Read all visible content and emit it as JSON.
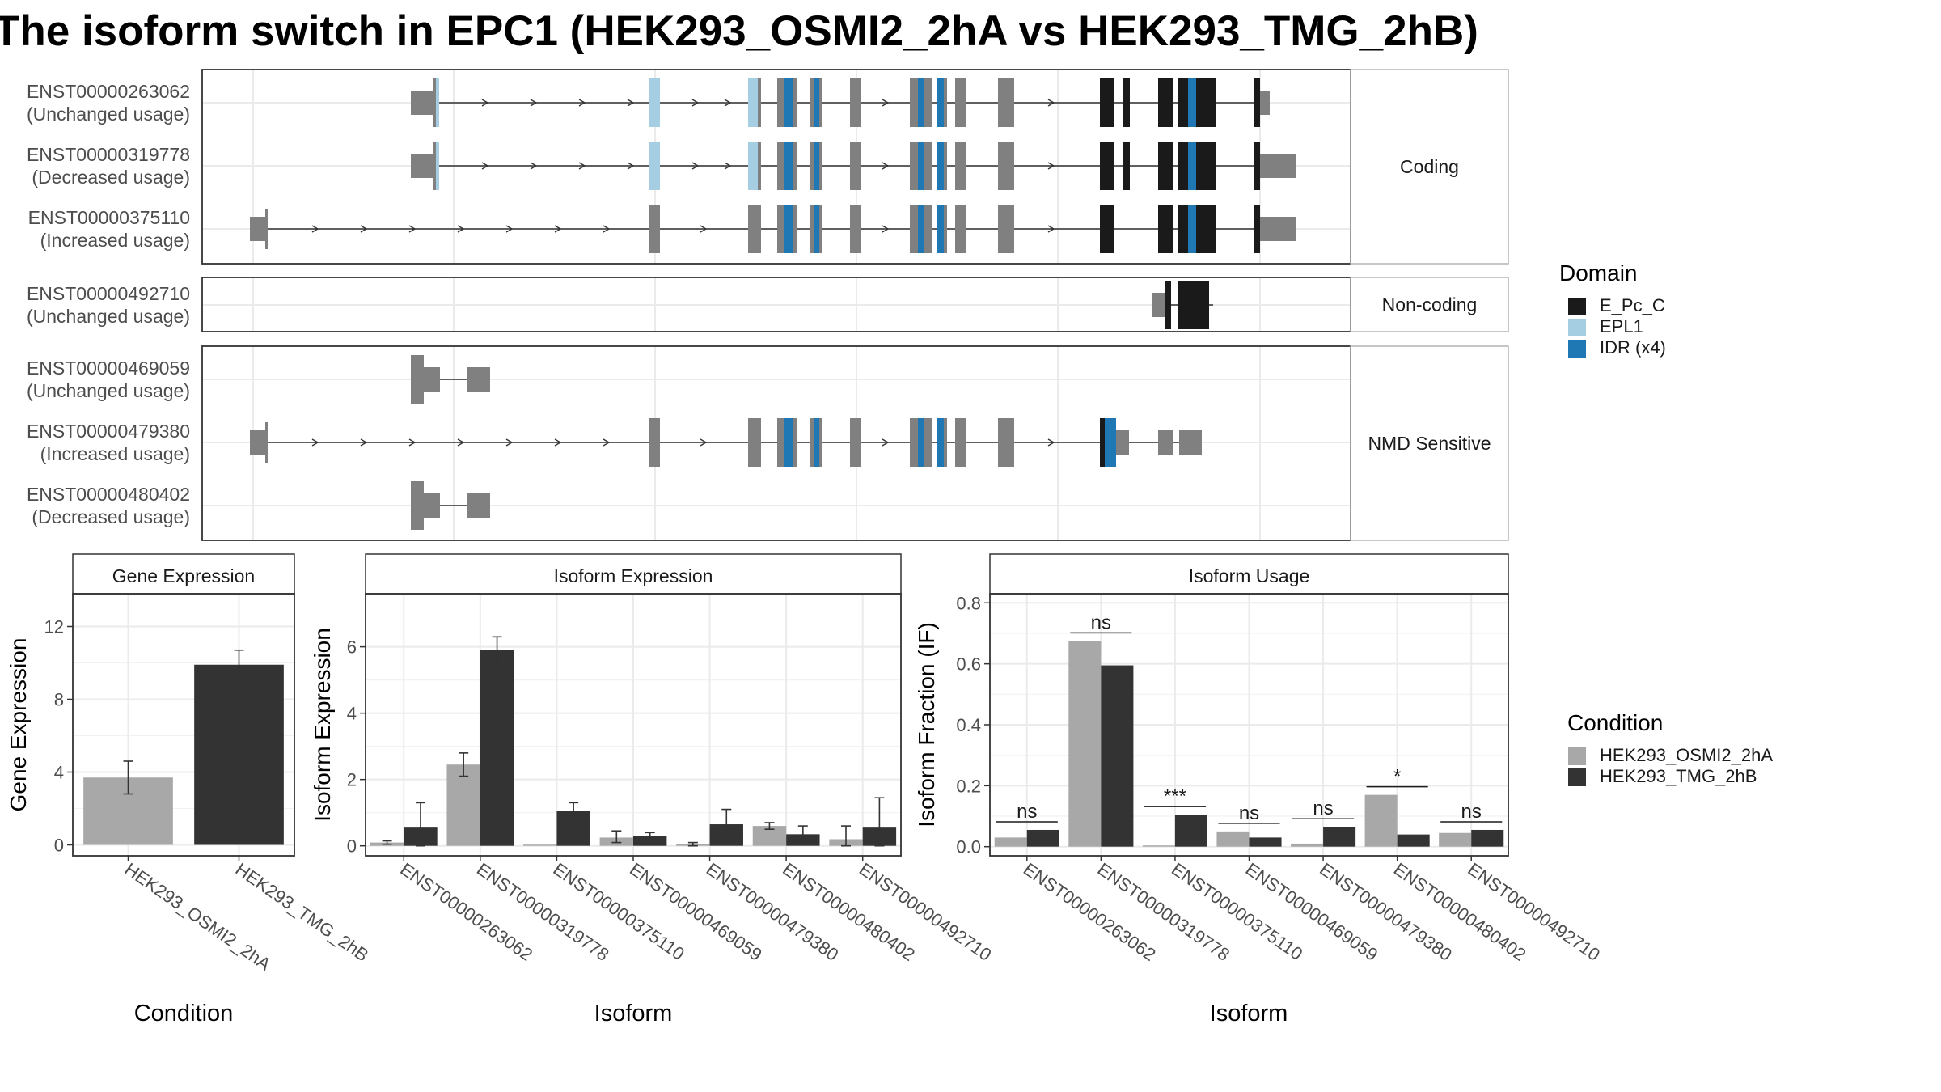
{
  "title": "The isoform switch in EPC1 (HEK293_OSMI2_2hA vs HEK293_TMG_2hB)",
  "colors": {
    "cond_a": "#A8A8A8",
    "cond_b": "#333333",
    "exon_plain": "#808080",
    "domain_epcc": "#1A1A1A",
    "domain_epl1": "#A6CEE3",
    "domain_idr": "#1F78B4",
    "grid": "#EBEBEB"
  },
  "structure": {
    "panels": [
      {
        "label": "Coding",
        "rows": [
          {
            "id": "ENST00000263062",
            "usage": "(Unchanged usage)"
          },
          {
            "id": "ENST00000319778",
            "usage": "(Decreased usage)"
          },
          {
            "id": "ENST00000375110",
            "usage": "(Increased usage)"
          }
        ]
      },
      {
        "label": "Non-coding",
        "rows": [
          {
            "id": "ENST00000492710",
            "usage": "(Unchanged usage)"
          }
        ]
      },
      {
        "label": "NMD Sensitive",
        "rows": [
          {
            "id": "ENST00000469059",
            "usage": "(Unchanged usage)"
          },
          {
            "id": "ENST00000479380",
            "usage": "(Increased usage)"
          },
          {
            "id": "ENST00000480402",
            "usage": "(Decreased usage)"
          }
        ]
      }
    ]
  },
  "domain_legend": {
    "title": "Domain",
    "items": [
      {
        "label": "E_Pc_C",
        "color": "#1A1A1A"
      },
      {
        "label": "EPL1",
        "color": "#A6CEE3"
      },
      {
        "label": "IDR (x4)",
        "color": "#1F78B4"
      }
    ]
  },
  "condition_legend": {
    "title": "Condition",
    "items": [
      {
        "label": "HEK293_OSMI2_2hA",
        "color": "#A8A8A8"
      },
      {
        "label": "HEK293_TMG_2hB",
        "color": "#333333"
      }
    ]
  },
  "chart_data": [
    {
      "type": "bar",
      "title": "Gene Expression",
      "xlabel": "Condition",
      "ylabel": "Gene Expression",
      "categories": [
        "HEK293_OSMI2_2hA",
        "HEK293_TMG_2hB"
      ],
      "values": [
        3.7,
        9.9
      ],
      "errors": [
        [
          2.8,
          4.6
        ],
        [
          9.1,
          10.7
        ]
      ],
      "ylim": [
        -0.6,
        13.8
      ],
      "yticks": [
        0,
        4,
        8,
        12
      ]
    },
    {
      "type": "bar",
      "title": "Isoform Expression",
      "xlabel": "Isoform",
      "ylabel": "Isoform Expression",
      "categories": [
        "ENST00000263062",
        "ENST00000319778",
        "ENST00000375110",
        "ENST00000469059",
        "ENST00000479380",
        "ENST00000480402",
        "ENST00000492710"
      ],
      "series": [
        {
          "name": "HEK293_OSMI2_2hA",
          "values": [
            0.1,
            2.45,
            0.0,
            0.25,
            0.05,
            0.6,
            0.2
          ],
          "errors": [
            [
              0.05,
              0.15
            ],
            [
              2.1,
              2.8
            ],
            [
              0.0,
              0.0
            ],
            [
              0.1,
              0.45
            ],
            [
              0.0,
              0.1
            ],
            [
              0.5,
              0.7
            ],
            [
              0.0,
              0.6
            ]
          ]
        },
        {
          "name": "HEK293_TMG_2hB",
          "values": [
            0.55,
            5.9,
            1.05,
            0.3,
            0.65,
            0.35,
            0.55
          ],
          "errors": [
            [
              0.0,
              1.3
            ],
            [
              5.5,
              6.3
            ],
            [
              0.8,
              1.3
            ],
            [
              0.2,
              0.4
            ],
            [
              0.2,
              1.1
            ],
            [
              0.15,
              0.6
            ],
            [
              0.0,
              1.45
            ]
          ]
        }
      ],
      "ylim": [
        -0.3,
        7.6
      ],
      "yticks": [
        0,
        2,
        4,
        6
      ]
    },
    {
      "type": "bar",
      "title": "Isoform Usage",
      "xlabel": "Isoform",
      "ylabel": "Isoform Fraction (IF)",
      "categories": [
        "ENST00000263062",
        "ENST00000319778",
        "ENST00000375110",
        "ENST00000469059",
        "ENST00000479380",
        "ENST00000480402",
        "ENST00000492710"
      ],
      "series": [
        {
          "name": "HEK293_OSMI2_2hA",
          "values": [
            0.03,
            0.675,
            0.0,
            0.05,
            0.01,
            0.17,
            0.045
          ]
        },
        {
          "name": "HEK293_TMG_2hB",
          "values": [
            0.055,
            0.595,
            0.105,
            0.03,
            0.065,
            0.04,
            0.055
          ]
        }
      ],
      "significance": [
        "ns",
        "ns",
        "***",
        "ns",
        "ns",
        "*",
        "ns"
      ],
      "ylim": [
        -0.03,
        0.83
      ],
      "yticks": [
        "0.0",
        "0.2",
        "0.4",
        "0.6",
        "0.8"
      ]
    }
  ]
}
